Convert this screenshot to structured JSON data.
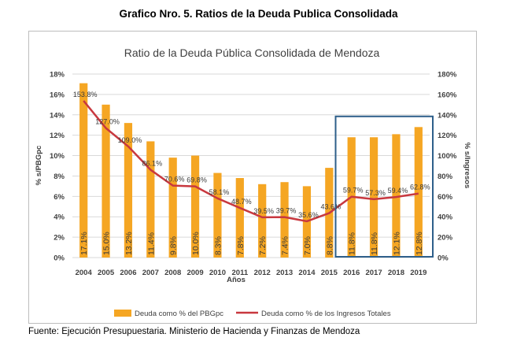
{
  "figure_title": "Grafico Nro. 5. Ratios de la Deuda Publica Consolidada",
  "source_note": "Fuente: Ejecución Presupuestaria. Ministerio de Hacienda y Finanzas de Mendoza",
  "colors": {
    "bar": "#F5A623",
    "line": "#C8383F",
    "highlight_box": "#2E5F8A",
    "grid": "#d9d9d9",
    "axis_text": "#404040"
  },
  "chart_data": {
    "type": "bar",
    "title": "Ratio de la Deuda Pública Consolidada de Mendoza",
    "xlabel": "Años",
    "ylabel_left": "% s/PBGpc",
    "ylabel_right": "% s/Ingresos",
    "ylim_left": [
      0,
      18
    ],
    "ylim_right": [
      0,
      180
    ],
    "yticks_left": [
      "0%",
      "2%",
      "4%",
      "6%",
      "8%",
      "10%",
      "12%",
      "14%",
      "16%",
      "18%"
    ],
    "yticks_right": [
      "0%",
      "20%",
      "40%",
      "60%",
      "80%",
      "100%",
      "120%",
      "140%",
      "160%",
      "180%"
    ],
    "categories": [
      "2004",
      "2005",
      "2006",
      "2007",
      "2008",
      "2009",
      "2010",
      "2011",
      "2012",
      "2013",
      "2014",
      "2015",
      "2016",
      "2017",
      "2018",
      "2019"
    ],
    "grid": true,
    "legend_position": "bottom",
    "highlight_range": [
      "2016",
      "2019"
    ],
    "series": [
      {
        "name": "Deuda como % del PBGpc",
        "type": "bar",
        "axis": "left",
        "values": [
          17.1,
          15.0,
          13.2,
          11.4,
          9.8,
          10.0,
          8.3,
          7.8,
          7.2,
          7.4,
          7.0,
          8.8,
          11.8,
          11.8,
          12.1,
          12.8
        ],
        "labels": [
          "17.1%",
          "15.0%",
          "13.2%",
          "11.4%",
          "9.8%",
          "10.0%",
          "8.3%",
          "7.8%",
          "7.2%",
          "7.4%",
          "7.0%",
          "8.8%",
          "11.8%",
          "11.8%",
          "12.1%",
          "12.8%"
        ]
      },
      {
        "name": "Deuda como % de los Ingresos Totales",
        "type": "line",
        "axis": "right",
        "values": [
          153.8,
          127.0,
          109.0,
          86.1,
          70.6,
          69.8,
          58.1,
          48.7,
          39.5,
          39.7,
          35.6,
          43.6,
          59.7,
          57.3,
          59.4,
          62.8
        ],
        "labels": [
          "153.8%",
          "127.0%",
          "109.0%",
          "86.1%",
          "70.6%",
          "69.8%",
          "58.1%",
          "48.7%",
          "39.5%",
          "39.7%",
          "35.6%",
          "43.6%",
          "59.7%",
          "57.3%",
          "59.4%",
          "62.8%"
        ]
      }
    ]
  }
}
